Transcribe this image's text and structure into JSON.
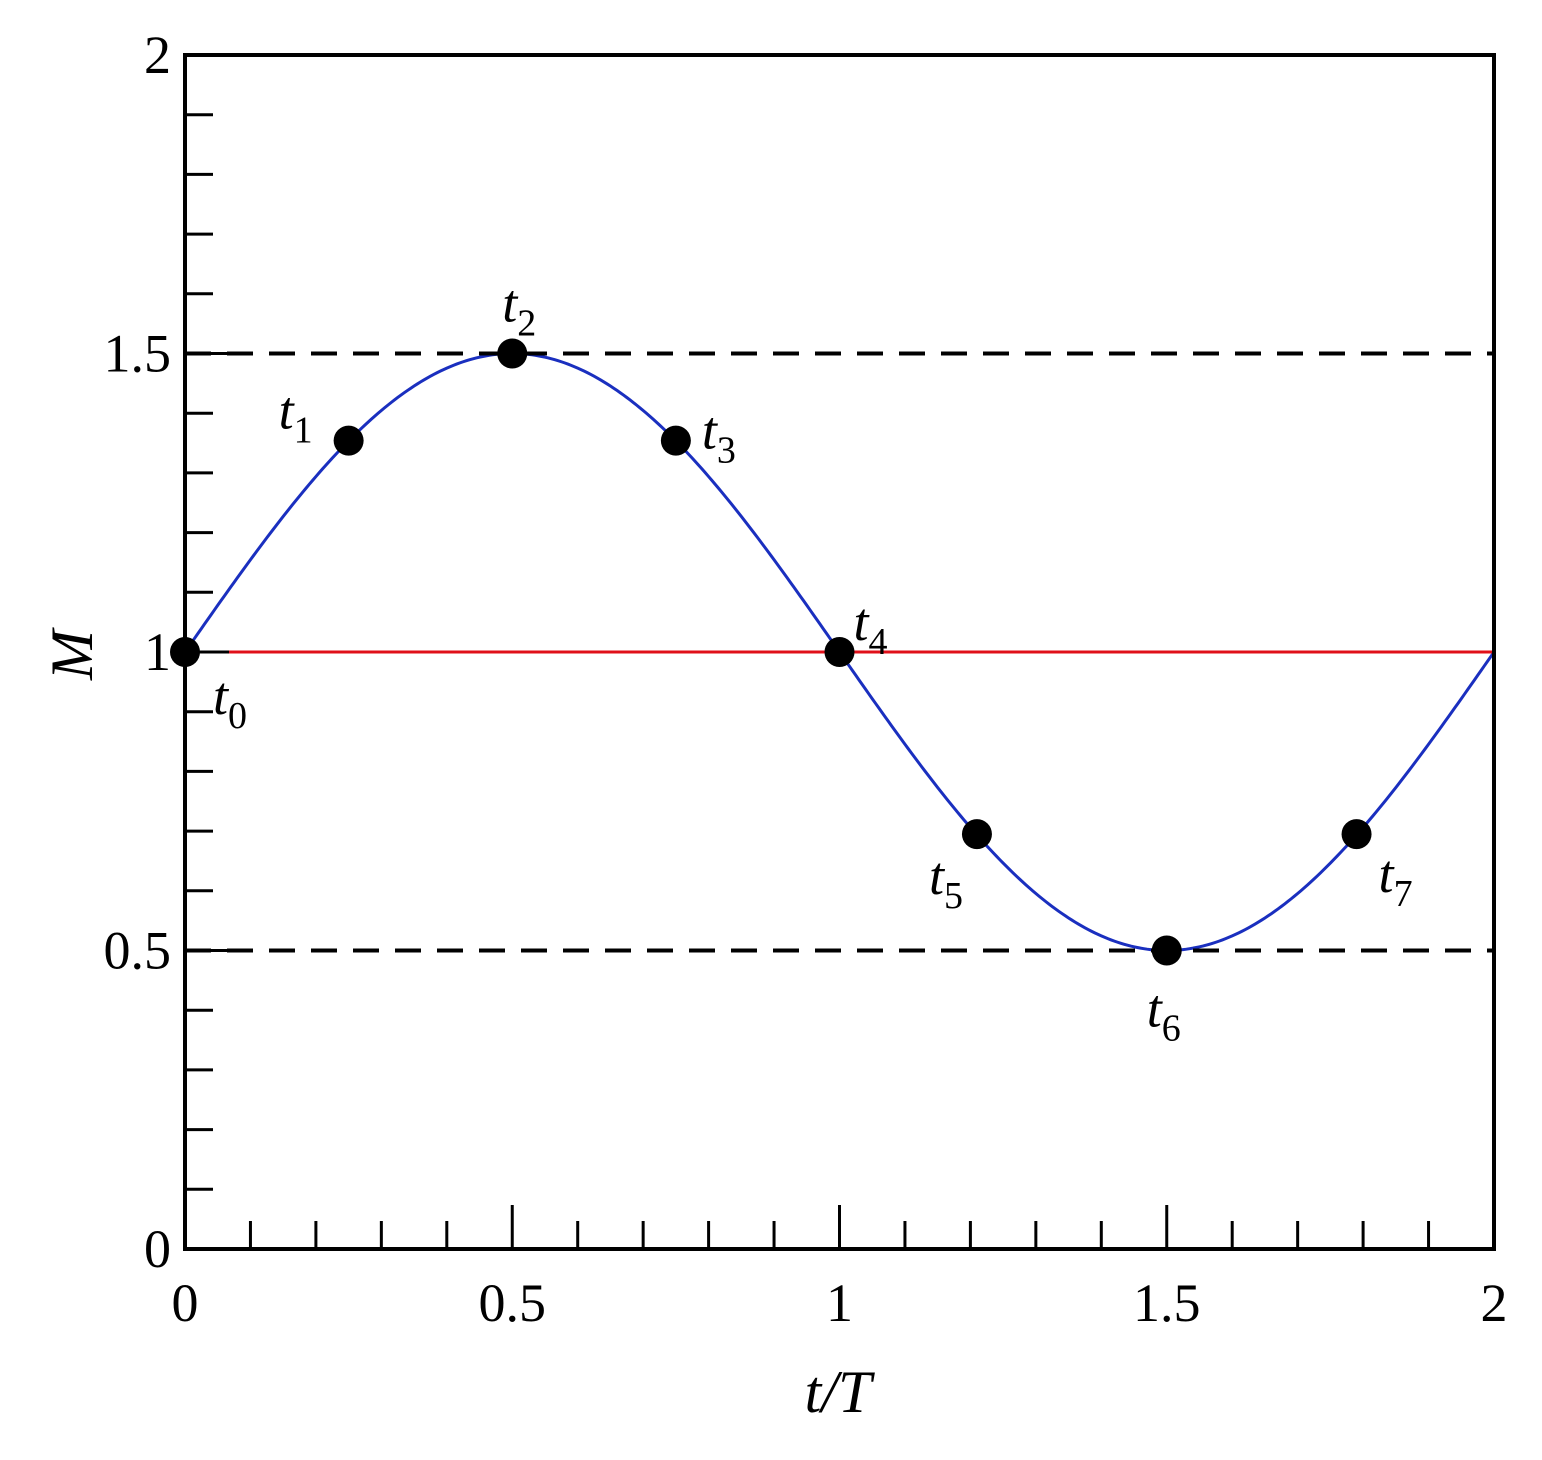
{
  "chart_data": {
    "type": "line",
    "xlabel": "t/T",
    "ylabel": "M",
    "xlim": [
      0,
      2
    ],
    "ylim": [
      0,
      2
    ],
    "x_ticks": [
      "0",
      "0.5",
      "1",
      "1.5",
      "2"
    ],
    "y_ticks": [
      "0",
      "0.5",
      "1",
      "1.5",
      "2"
    ],
    "x_minor_step": 0.1,
    "y_minor_step": 0.1,
    "grid": false,
    "series": [
      {
        "kind": "curve",
        "function": "M = 1 + 0.5 sin(pi t/T)",
        "color": "#1a2fbf",
        "style": "solid",
        "x": [
          0,
          0.1,
          0.2,
          0.3,
          0.4,
          0.5,
          0.6,
          0.7,
          0.8,
          0.9,
          1.0,
          1.1,
          1.2,
          1.3,
          1.4,
          1.5,
          1.6,
          1.7,
          1.8,
          1.9,
          2.0
        ],
        "y": [
          1.0,
          1.155,
          1.294,
          1.405,
          1.476,
          1.5,
          1.476,
          1.405,
          1.294,
          1.155,
          1.0,
          0.845,
          0.706,
          0.595,
          0.524,
          0.5,
          0.524,
          0.595,
          0.706,
          0.845,
          1.0
        ]
      },
      {
        "kind": "line",
        "color": "#e0101a",
        "style": "solid",
        "x": [
          0,
          2
        ],
        "y": [
          1,
          1
        ]
      },
      {
        "kind": "line",
        "color": "#000000",
        "style": "dashed",
        "x": [
          0,
          2
        ],
        "y": [
          1.5,
          1.5
        ]
      },
      {
        "kind": "line",
        "color": "#000000",
        "style": "dashed",
        "x": [
          0,
          2
        ],
        "y": [
          0.5,
          0.5
        ]
      }
    ],
    "points": [
      {
        "label": "t",
        "sub": "0",
        "x": 0.0,
        "y": 1.0,
        "anchor": "below-right"
      },
      {
        "label": "t",
        "sub": "1",
        "x": 0.25,
        "y": 1.354,
        "anchor": "above-left"
      },
      {
        "label": "t",
        "sub": "2",
        "x": 0.5,
        "y": 1.5,
        "anchor": "above"
      },
      {
        "label": "t",
        "sub": "3",
        "x": 0.75,
        "y": 1.354,
        "anchor": "right"
      },
      {
        "label": "t",
        "sub": "4",
        "x": 1.0,
        "y": 1.0,
        "anchor": "above-right"
      },
      {
        "label": "t",
        "sub": "5",
        "x": 1.21,
        "y": 0.695,
        "anchor": "below-left"
      },
      {
        "label": "t",
        "sub": "6",
        "x": 1.5,
        "y": 0.5,
        "anchor": "below"
      },
      {
        "label": "t",
        "sub": "7",
        "x": 1.79,
        "y": 0.695,
        "anchor": "below-right"
      }
    ],
    "marker_color": "#000000"
  }
}
